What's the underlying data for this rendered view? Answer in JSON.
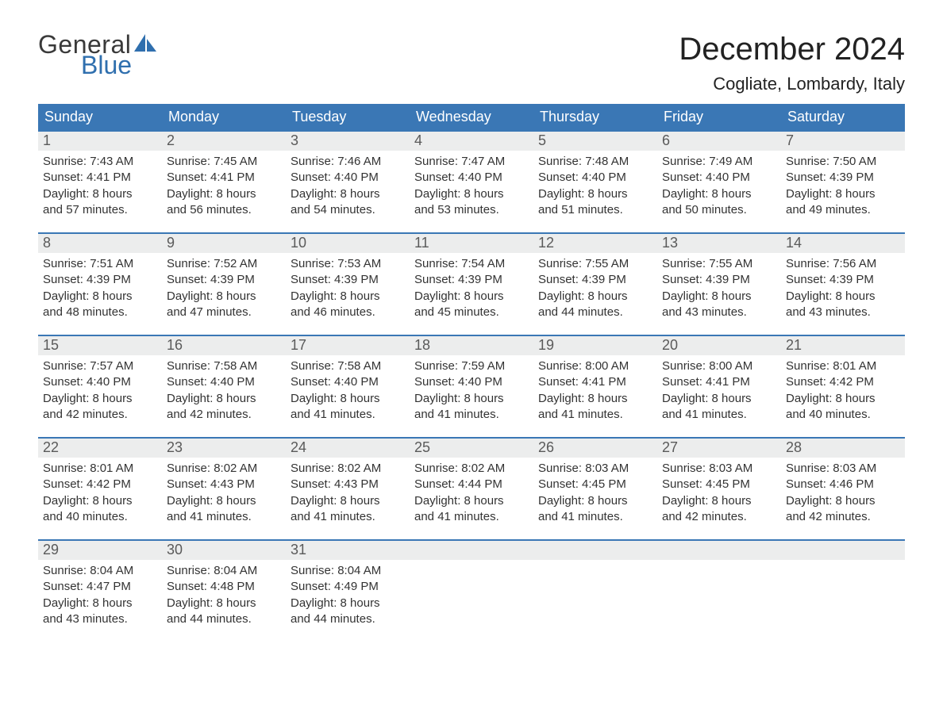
{
  "logo": {
    "word1": "General",
    "word2": "Blue",
    "sail_color": "#2f6fae"
  },
  "title": "December 2024",
  "location": "Cogliate, Lombardy, Italy",
  "colors": {
    "header_bg": "#3a77b5",
    "header_text": "#ffffff",
    "week_border": "#3a77b5",
    "daynum_bg": "#eceded",
    "daynum_text": "#5a5a5a",
    "body_text": "#333333",
    "page_bg": "#ffffff"
  },
  "typography": {
    "title_fontsize": 40,
    "location_fontsize": 22,
    "dayhead_fontsize": 18,
    "daynum_fontsize": 18,
    "body_fontsize": 15
  },
  "day_headers": [
    "Sunday",
    "Monday",
    "Tuesday",
    "Wednesday",
    "Thursday",
    "Friday",
    "Saturday"
  ],
  "weeks": [
    [
      {
        "num": "1",
        "sunrise": "7:43 AM",
        "sunset": "4:41 PM",
        "daylight": "8 hours and 57 minutes."
      },
      {
        "num": "2",
        "sunrise": "7:45 AM",
        "sunset": "4:41 PM",
        "daylight": "8 hours and 56 minutes."
      },
      {
        "num": "3",
        "sunrise": "7:46 AM",
        "sunset": "4:40 PM",
        "daylight": "8 hours and 54 minutes."
      },
      {
        "num": "4",
        "sunrise": "7:47 AM",
        "sunset": "4:40 PM",
        "daylight": "8 hours and 53 minutes."
      },
      {
        "num": "5",
        "sunrise": "7:48 AM",
        "sunset": "4:40 PM",
        "daylight": "8 hours and 51 minutes."
      },
      {
        "num": "6",
        "sunrise": "7:49 AM",
        "sunset": "4:40 PM",
        "daylight": "8 hours and 50 minutes."
      },
      {
        "num": "7",
        "sunrise": "7:50 AM",
        "sunset": "4:39 PM",
        "daylight": "8 hours and 49 minutes."
      }
    ],
    [
      {
        "num": "8",
        "sunrise": "7:51 AM",
        "sunset": "4:39 PM",
        "daylight": "8 hours and 48 minutes."
      },
      {
        "num": "9",
        "sunrise": "7:52 AM",
        "sunset": "4:39 PM",
        "daylight": "8 hours and 47 minutes."
      },
      {
        "num": "10",
        "sunrise": "7:53 AM",
        "sunset": "4:39 PM",
        "daylight": "8 hours and 46 minutes."
      },
      {
        "num": "11",
        "sunrise": "7:54 AM",
        "sunset": "4:39 PM",
        "daylight": "8 hours and 45 minutes."
      },
      {
        "num": "12",
        "sunrise": "7:55 AM",
        "sunset": "4:39 PM",
        "daylight": "8 hours and 44 minutes."
      },
      {
        "num": "13",
        "sunrise": "7:55 AM",
        "sunset": "4:39 PM",
        "daylight": "8 hours and 43 minutes."
      },
      {
        "num": "14",
        "sunrise": "7:56 AM",
        "sunset": "4:39 PM",
        "daylight": "8 hours and 43 minutes."
      }
    ],
    [
      {
        "num": "15",
        "sunrise": "7:57 AM",
        "sunset": "4:40 PM",
        "daylight": "8 hours and 42 minutes."
      },
      {
        "num": "16",
        "sunrise": "7:58 AM",
        "sunset": "4:40 PM",
        "daylight": "8 hours and 42 minutes."
      },
      {
        "num": "17",
        "sunrise": "7:58 AM",
        "sunset": "4:40 PM",
        "daylight": "8 hours and 41 minutes."
      },
      {
        "num": "18",
        "sunrise": "7:59 AM",
        "sunset": "4:40 PM",
        "daylight": "8 hours and 41 minutes."
      },
      {
        "num": "19",
        "sunrise": "8:00 AM",
        "sunset": "4:41 PM",
        "daylight": "8 hours and 41 minutes."
      },
      {
        "num": "20",
        "sunrise": "8:00 AM",
        "sunset": "4:41 PM",
        "daylight": "8 hours and 41 minutes."
      },
      {
        "num": "21",
        "sunrise": "8:01 AM",
        "sunset": "4:42 PM",
        "daylight": "8 hours and 40 minutes."
      }
    ],
    [
      {
        "num": "22",
        "sunrise": "8:01 AM",
        "sunset": "4:42 PM",
        "daylight": "8 hours and 40 minutes."
      },
      {
        "num": "23",
        "sunrise": "8:02 AM",
        "sunset": "4:43 PM",
        "daylight": "8 hours and 41 minutes."
      },
      {
        "num": "24",
        "sunrise": "8:02 AM",
        "sunset": "4:43 PM",
        "daylight": "8 hours and 41 minutes."
      },
      {
        "num": "25",
        "sunrise": "8:02 AM",
        "sunset": "4:44 PM",
        "daylight": "8 hours and 41 minutes."
      },
      {
        "num": "26",
        "sunrise": "8:03 AM",
        "sunset": "4:45 PM",
        "daylight": "8 hours and 41 minutes."
      },
      {
        "num": "27",
        "sunrise": "8:03 AM",
        "sunset": "4:45 PM",
        "daylight": "8 hours and 42 minutes."
      },
      {
        "num": "28",
        "sunrise": "8:03 AM",
        "sunset": "4:46 PM",
        "daylight": "8 hours and 42 minutes."
      }
    ],
    [
      {
        "num": "29",
        "sunrise": "8:04 AM",
        "sunset": "4:47 PM",
        "daylight": "8 hours and 43 minutes."
      },
      {
        "num": "30",
        "sunrise": "8:04 AM",
        "sunset": "4:48 PM",
        "daylight": "8 hours and 44 minutes."
      },
      {
        "num": "31",
        "sunrise": "8:04 AM",
        "sunset": "4:49 PM",
        "daylight": "8 hours and 44 minutes."
      },
      {
        "empty": true
      },
      {
        "empty": true
      },
      {
        "empty": true
      },
      {
        "empty": true
      }
    ]
  ],
  "labels": {
    "sunrise": "Sunrise:",
    "sunset": "Sunset:",
    "daylight": "Daylight:"
  }
}
